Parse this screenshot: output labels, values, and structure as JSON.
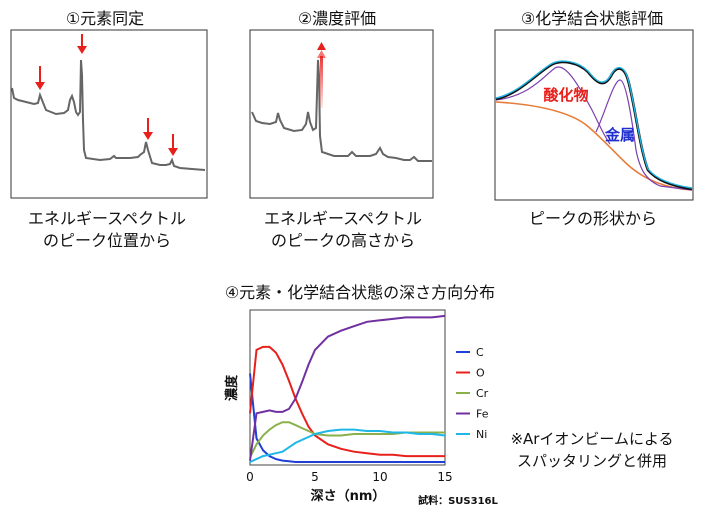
{
  "panels": {
    "p1": {
      "title": "①元素同定",
      "caption_line1": "エネルギースペクトル",
      "caption_line2": "のピーク位置から"
    },
    "p2": {
      "title": "②濃度評価",
      "caption_line1": "エネルギースペクトル",
      "caption_line2": "のピークの高さから"
    },
    "p3": {
      "title": "③化学結合状態評価",
      "caption": "ピークの形状から",
      "label_oxide": "酸化物",
      "label_metal": "金属"
    }
  },
  "depth_profile": {
    "title": "④元素・化学結合状態の深さ方向分布",
    "note_line1": "※Arイオンビームによる",
    "note_line2": "スパッタリングと併用",
    "sample": "試料：SUS316L",
    "chart_data": {
      "type": "line",
      "title": "④元素・化学結合状態の深さ方向分布",
      "xlabel": "深さ（nm）",
      "ylabel": "濃度",
      "xlim": [
        0,
        15
      ],
      "x_ticks": [
        "0",
        "5",
        "10",
        "15"
      ],
      "legend_position": "right",
      "x": [
        0,
        0.5,
        1,
        1.5,
        2,
        2.5,
        3,
        3.5,
        4,
        4.5,
        5,
        6,
        7,
        8,
        9,
        10,
        11,
        12,
        13,
        14,
        15
      ],
      "series": [
        {
          "name": "C",
          "color": "#1f3fd6",
          "values": [
            62,
            18,
            10,
            6,
            4,
            3,
            2.5,
            2,
            2,
            2,
            2,
            2,
            2,
            2,
            2,
            2,
            2,
            2,
            2,
            2,
            2
          ]
        },
        {
          "name": "O",
          "color": "#e8201c",
          "values": [
            35,
            78,
            80,
            80,
            76,
            68,
            57,
            45,
            35,
            26,
            20,
            14,
            11,
            9,
            8,
            7,
            7,
            6,
            6,
            6,
            6
          ]
        },
        {
          "name": "Cr",
          "color": "#8ab04a",
          "values": [
            5,
            14,
            20,
            24,
            27,
            29,
            29,
            27,
            25,
            23,
            21,
            20,
            20,
            21,
            21,
            21,
            21,
            22,
            22,
            22,
            22
          ]
        },
        {
          "name": "Fe",
          "color": "#7030a0",
          "values": [
            3,
            35,
            36,
            37,
            36,
            36,
            38,
            45,
            56,
            68,
            78,
            87,
            91,
            94,
            97,
            98,
            99,
            100,
            100,
            100,
            101
          ]
        },
        {
          "name": "Ni",
          "color": "#1fb6e8",
          "values": [
            2,
            4,
            6,
            7,
            8,
            9,
            12,
            15,
            17,
            19,
            21,
            23,
            24,
            24,
            23,
            23,
            22,
            22,
            21,
            21,
            20
          ]
        }
      ]
    }
  }
}
